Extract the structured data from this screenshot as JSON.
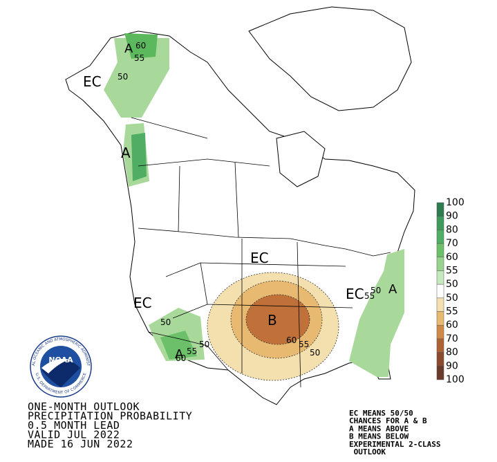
{
  "title_lines": [
    "ONE-MONTH OUTLOOK",
    "PRECIPITATION PROBABILITY",
    "0.5 MONTH LEAD",
    "VALID JUL 2022",
    "MADE 16 JUN 2022"
  ],
  "notes": [
    "EC MEANS 50/50",
    "CHANCES FOR A & B",
    "A MEANS ABOVE",
    "B MEANS BELOW",
    "EXPERIMENTAL 2-CLASS",
    " OUTLOOK"
  ],
  "legend": {
    "labels": [
      "100",
      "90",
      "80",
      "70",
      "60",
      "55",
      "50",
      "50",
      "55",
      "60",
      "70",
      "80",
      "90",
      "100"
    ],
    "colors": [
      "#2e7d4f",
      "#3f9a5e",
      "#4fae63",
      "#6cc06a",
      "#97d38c",
      "#c5e8bc",
      "#ffffff",
      "#f4dfae",
      "#e8b970",
      "#d08a47",
      "#ad6233",
      "#8a4a2c",
      "#6b3a2a"
    ]
  },
  "logo": {
    "name": "NOAA",
    "ring_top": "NATIONAL OCEANIC AND ATMOSPHERIC ADMINISTRATION",
    "ring_bottom": "U.S. DEPARTMENT OF COMMERCE"
  },
  "map_labels": [
    "A",
    "60",
    "55",
    "EC",
    "50",
    "A",
    "EC",
    "EC",
    "50",
    "A",
    "55",
    "50",
    "60",
    "B",
    "60",
    "55",
    "50",
    "EC",
    "55",
    "50",
    "A"
  ]
}
